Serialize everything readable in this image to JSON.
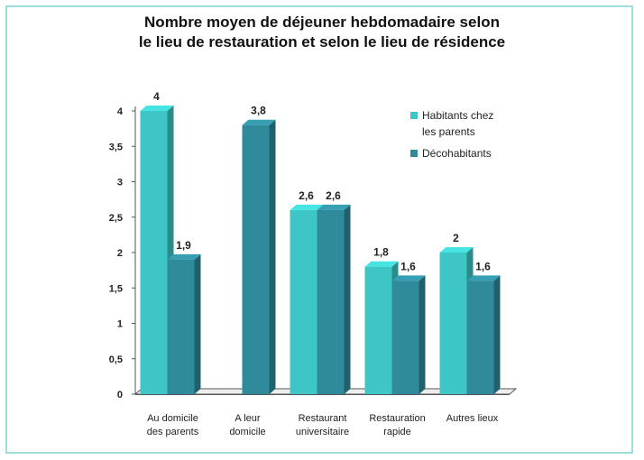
{
  "chart_data": {
    "type": "bar",
    "title": "Nombre moyen de déjeuner hebdomadaire selon\nle lieu de restauration et selon le lieu de résidence",
    "categories": [
      "Au domicile\ndes parents",
      "A leur\ndomicile",
      "Restaurant\nuniversitaire",
      "Restauration\nrapide",
      "Autres lieux"
    ],
    "series": [
      {
        "name": "Habitants chez\nles parents",
        "color": "#3ec6c6",
        "values": [
          4,
          null,
          2.6,
          1.8,
          2
        ],
        "value_labels": [
          "4",
          null,
          "2,6",
          "1,8",
          "2"
        ]
      },
      {
        "name": "Décohabitants",
        "color": "#2f8a9c",
        "values": [
          1.9,
          3.8,
          2.6,
          1.6,
          1.6
        ],
        "value_labels": [
          "1,9",
          "3,8",
          "2,6",
          "1,6",
          "1,6"
        ]
      }
    ],
    "ylim": [
      0,
      4
    ],
    "yticks": [
      0,
      {
        "value": 0.5,
        "label": "0,5"
      },
      1,
      {
        "value": 1.5,
        "label": "1,5"
      },
      2,
      {
        "value": 2.5,
        "label": "2,5"
      },
      3,
      {
        "value": 3.5,
        "label": "3,5"
      },
      4
    ],
    "legend": "top-right"
  }
}
